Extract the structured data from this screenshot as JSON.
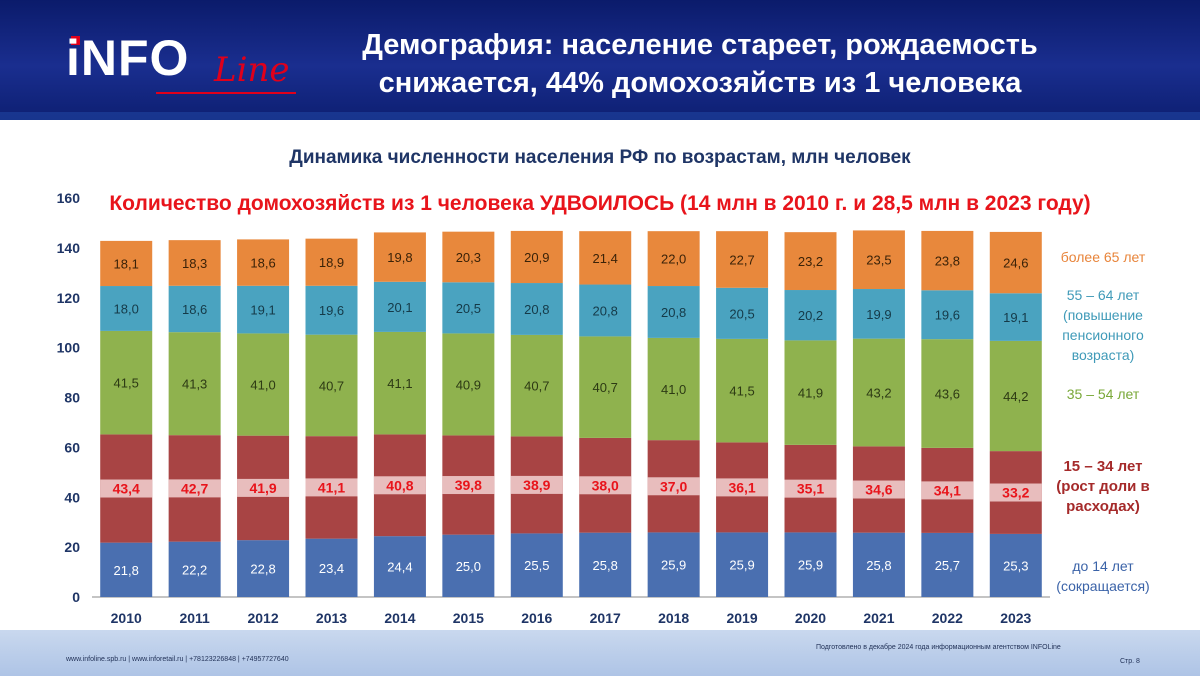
{
  "header": {
    "logo_main": "iNFO",
    "logo_script": "Line",
    "title_line1": "Демография: население стареет, рождаемость",
    "title_line2": "снижается, 44% домохозяйств из 1 человека"
  },
  "chart_data": {
    "type": "bar",
    "stacked": true,
    "title": "Динамика численности населения РФ по возрастам, млн человек",
    "annotation": "Количество домохозяйств из 1 человека УДВОИЛОСЬ (14 млн в 2010 г. и 28,5 млн в 2023 году)",
    "categories": [
      "2010",
      "2011",
      "2012",
      "2013",
      "2014",
      "2015",
      "2016",
      "2017",
      "2018",
      "2019",
      "2020",
      "2021",
      "2022",
      "2023"
    ],
    "ylim": [
      0,
      160
    ],
    "yticks": [
      0,
      20,
      40,
      60,
      80,
      100,
      120,
      140,
      160
    ],
    "grid": false,
    "legend_position": "right",
    "series": [
      {
        "key": "s14",
        "color": "#4a6fb0",
        "label_color": "#ffffff",
        "values": [
          21.8,
          22.2,
          22.8,
          23.4,
          24.4,
          25.0,
          25.5,
          25.8,
          25.9,
          25.9,
          25.9,
          25.8,
          25.7,
          25.3
        ],
        "labels": [
          "21,8",
          "22,2",
          "22,8",
          "23,4",
          "24,4",
          "25,0",
          "25,5",
          "25,8",
          "25,9",
          "25,9",
          "25,9",
          "25,8",
          "25,7",
          "25,3"
        ]
      },
      {
        "key": "s15",
        "color": "#a84444",
        "label_color": "#e8141b",
        "label_bg": "#f3d2d2",
        "values": [
          43.4,
          42.7,
          41.9,
          41.1,
          40.8,
          39.8,
          38.9,
          38.0,
          37.0,
          36.1,
          35.1,
          34.6,
          34.1,
          33.2
        ],
        "labels": [
          "43,4",
          "42,7",
          "41,9",
          "41,1",
          "40,8",
          "39,8",
          "38,9",
          "38,0",
          "37,0",
          "36,1",
          "35,1",
          "34,6",
          "34,1",
          "33,2"
        ]
      },
      {
        "key": "s35",
        "color": "#8fb24e",
        "label_color": "#2d3a14",
        "values": [
          41.5,
          41.3,
          41.0,
          40.7,
          41.1,
          40.9,
          40.7,
          40.7,
          41.0,
          41.5,
          41.9,
          43.2,
          43.6,
          44.2
        ],
        "labels": [
          "41,5",
          "41,3",
          "41,0",
          "40,7",
          "41,1",
          "40,9",
          "40,7",
          "40,7",
          "41,0",
          "41,5",
          "41,9",
          "43,2",
          "43,6",
          "44,2"
        ]
      },
      {
        "key": "s55",
        "color": "#4aa3c0",
        "label_color": "#153a48",
        "values": [
          18.0,
          18.6,
          19.1,
          19.6,
          20.1,
          20.5,
          20.8,
          20.8,
          20.8,
          20.5,
          20.2,
          19.9,
          19.6,
          19.1
        ],
        "labels": [
          "18,0",
          "18,6",
          "19,1",
          "19,6",
          "20,1",
          "20,5",
          "20,8",
          "20,8",
          "20,8",
          "20,5",
          "20,2",
          "19,9",
          "19,6",
          "19,1"
        ]
      },
      {
        "key": "s65",
        "color": "#e8883c",
        "label_color": "#3a2208",
        "values": [
          18.1,
          18.3,
          18.6,
          18.9,
          19.8,
          20.3,
          20.9,
          21.4,
          22.0,
          22.7,
          23.2,
          23.5,
          23.8,
          24.6
        ],
        "labels": [
          "18,1",
          "18,3",
          "18,6",
          "18,9",
          "19,8",
          "20,3",
          "20,9",
          "21,4",
          "22,0",
          "22,7",
          "23,2",
          "23,5",
          "23,8",
          "24,6"
        ]
      }
    ]
  },
  "legend": {
    "s65": "более 65 лет",
    "s55_1": "55 – 64 лет",
    "s55_2": "(повышение",
    "s55_3": "пенсионного",
    "s55_4": "возраста)",
    "s35": "35 – 54 лет",
    "s15_1": "15 – 34 лет",
    "s15_2": "(рост доли в",
    "s15_3": "расходах)",
    "s14_1": "до 14 лет",
    "s14_2": "(сокращается)"
  },
  "footer": {
    "contacts": "www.infoline.spb.ru | www.inforetail.ru | +78123226848 | +74957727640",
    "prepared": "Подготовлено в декабре 2024 года информационным агентством INFOLine",
    "page": "Стр. 8"
  },
  "colors": {
    "header_bg": "#14288a",
    "title_text": "#1f3566",
    "highlight": "#e8141b"
  }
}
